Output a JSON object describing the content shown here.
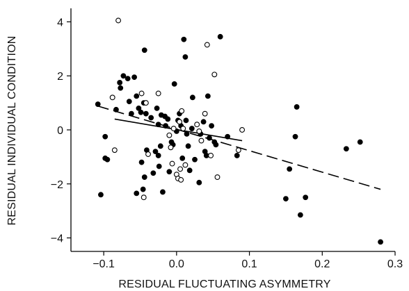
{
  "chart_data": {
    "type": "scatter",
    "xlabel": "RESIDUAL FLUCTUATING ASYMMETRY",
    "ylabel": "RESIDUAL INDIVIDUAL CONDITION",
    "xlim": [
      -0.145,
      0.3
    ],
    "ylim": [
      -4.5,
      4.5
    ],
    "xticks": [
      -0.1,
      0.0,
      0.1,
      0.2,
      0.3
    ],
    "xtick_labels": [
      "−0.1",
      "0.0",
      "0.1",
      "0.2",
      "0.3"
    ],
    "yticks": [
      -4,
      -2,
      0,
      2,
      4
    ],
    "ytick_labels": [
      "−4",
      "−2",
      "0",
      "2",
      "4"
    ],
    "grid": false,
    "legend": "none",
    "series": [
      {
        "marker": "filled-circle",
        "color": "#000000",
        "points": [
          [
            -0.108,
            0.95
          ],
          [
            -0.104,
            -2.4
          ],
          [
            -0.098,
            -0.25
          ],
          [
            -0.098,
            -1.05
          ],
          [
            -0.095,
            -1.1
          ],
          [
            -0.083,
            0.75
          ],
          [
            -0.078,
            1.75
          ],
          [
            -0.077,
            1.55
          ],
          [
            -0.073,
            2.0
          ],
          [
            -0.067,
            1.9
          ],
          [
            -0.065,
            1.05
          ],
          [
            -0.062,
            0.6
          ],
          [
            -0.058,
            1.95
          ],
          [
            -0.055,
            1.25
          ],
          [
            -0.055,
            -2.35
          ],
          [
            -0.052,
            0.8
          ],
          [
            -0.049,
            0.65
          ],
          [
            -0.048,
            -1.2
          ],
          [
            -0.046,
            -2.2
          ],
          [
            -0.045,
            1.0
          ],
          [
            -0.044,
            2.95
          ],
          [
            -0.044,
            -1.75
          ],
          [
            -0.042,
            0.6
          ],
          [
            -0.041,
            -0.75
          ],
          [
            -0.035,
            0.45
          ],
          [
            -0.032,
            -1.6
          ],
          [
            -0.029,
            -0.8
          ],
          [
            -0.027,
            0.8
          ],
          [
            -0.025,
            0.2
          ],
          [
            -0.025,
            -0.95
          ],
          [
            -0.024,
            -1.35
          ],
          [
            -0.022,
            -0.6
          ],
          [
            -0.021,
            0.55
          ],
          [
            -0.019,
            -2.3
          ],
          [
            -0.016,
            0.5
          ],
          [
            -0.015,
            0.15
          ],
          [
            -0.012,
            0.4
          ],
          [
            -0.01,
            -1.55
          ],
          [
            -0.007,
            -0.45
          ],
          [
            -0.005,
            -0.55
          ],
          [
            -0.003,
            1.7
          ],
          [
            0.0,
            -0.05
          ],
          [
            0.002,
            0.35
          ],
          [
            0.004,
            0.6
          ],
          [
            0.006,
            0.15
          ],
          [
            0.008,
            -1.05
          ],
          [
            0.01,
            3.35
          ],
          [
            0.012,
            2.7
          ],
          [
            0.013,
            0.35
          ],
          [
            0.014,
            -0.15
          ],
          [
            0.016,
            -0.6
          ],
          [
            0.018,
            -1.5
          ],
          [
            0.021,
            0.05
          ],
          [
            0.022,
            1.2
          ],
          [
            0.025,
            -1.1
          ],
          [
            0.031,
            -1.95
          ],
          [
            0.033,
            -0.15
          ],
          [
            0.037,
            0.3
          ],
          [
            0.039,
            -0.8
          ],
          [
            0.041,
            -0.95
          ],
          [
            0.043,
            1.25
          ],
          [
            0.045,
            -0.3
          ],
          [
            0.048,
            0.15
          ],
          [
            0.052,
            -0.45
          ],
          [
            0.054,
            -0.55
          ],
          [
            0.06,
            3.45
          ],
          [
            0.07,
            -0.25
          ],
          [
            0.083,
            -0.95
          ],
          [
            0.15,
            -2.55
          ],
          [
            0.155,
            -1.45
          ],
          [
            0.163,
            -0.25
          ],
          [
            0.165,
            0.85
          ],
          [
            0.17,
            -3.15
          ],
          [
            0.177,
            -2.5
          ],
          [
            0.233,
            -0.7
          ],
          [
            0.252,
            -0.45
          ],
          [
            0.28,
            -4.15
          ]
        ]
      },
      {
        "marker": "open-circle",
        "color": "#000000",
        "points": [
          [
            -0.088,
            1.2
          ],
          [
            -0.085,
            -0.75
          ],
          [
            -0.08,
            4.05
          ],
          [
            -0.048,
            1.35
          ],
          [
            -0.045,
            -2.5
          ],
          [
            -0.042,
            1.0
          ],
          [
            -0.039,
            -0.9
          ],
          [
            -0.025,
            1.35
          ],
          [
            -0.01,
            -0.2
          ],
          [
            -0.008,
            -0.65
          ],
          [
            -0.006,
            -1.25
          ],
          [
            -0.004,
            0.05
          ],
          [
            0.0,
            -1.65
          ],
          [
            0.002,
            -1.8
          ],
          [
            0.004,
            0.3
          ],
          [
            0.005,
            -1.45
          ],
          [
            0.006,
            -1.85
          ],
          [
            0.007,
            0.7
          ],
          [
            0.009,
            0.05
          ],
          [
            0.012,
            -1.3
          ],
          [
            0.028,
            0.2
          ],
          [
            0.031,
            -0.05
          ],
          [
            0.034,
            -0.4
          ],
          [
            0.039,
            0.6
          ],
          [
            0.042,
            3.15
          ],
          [
            0.047,
            -0.95
          ],
          [
            0.052,
            2.05
          ],
          [
            0.056,
            -1.75
          ],
          [
            0.085,
            -0.75
          ],
          [
            0.09,
            0.0
          ]
        ]
      }
    ],
    "fit_lines": [
      {
        "style": "solid",
        "x": [
          -0.085,
          0.09
        ],
        "y": [
          0.4,
          -0.4
        ]
      },
      {
        "style": "dashed",
        "x": [
          -0.108,
          0.28
        ],
        "y": [
          0.88,
          -2.2
        ]
      }
    ]
  }
}
